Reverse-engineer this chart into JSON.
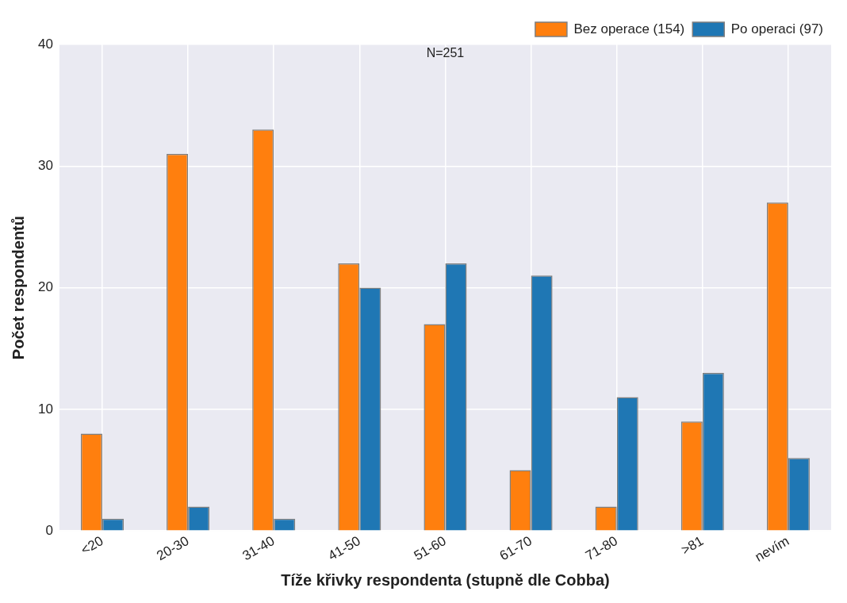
{
  "chart_data": {
    "type": "bar",
    "xlabel": "Tíže křivky respondenta (stupně dle Cobba)",
    "ylabel": "Počet respondentů",
    "annotations": [
      "N=251"
    ],
    "categories": [
      "<20",
      "20-30",
      "31-40",
      "41-50",
      "51-60",
      "61-70",
      "71-80",
      ">81",
      "nevím"
    ],
    "series": [
      {
        "name": "Bez operace (154)",
        "color": "#ff7f0e",
        "values": [
          8,
          31,
          33,
          22,
          17,
          5,
          2,
          9,
          27
        ]
      },
      {
        "name": "Po operaci (97)",
        "color": "#1f77b4",
        "values": [
          1,
          2,
          1,
          20,
          22,
          21,
          11,
          13,
          6
        ]
      }
    ],
    "ylim": [
      0,
      40
    ],
    "yticks": [
      0,
      10,
      20,
      30,
      40
    ],
    "grid": true,
    "legend": "top right"
  }
}
